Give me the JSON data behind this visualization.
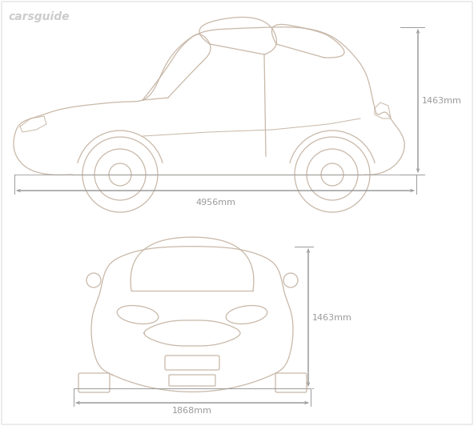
{
  "bg_color": "#ffffff",
  "line_color": "#c8b8a8",
  "dim_color": "#999999",
  "watermark": "carsguide",
  "watermark_color": "#cccccc",
  "side_height_label": "1463mm",
  "side_length_label": "4956mm",
  "front_height_label": "1463mm",
  "front_width_label": "1868mm"
}
